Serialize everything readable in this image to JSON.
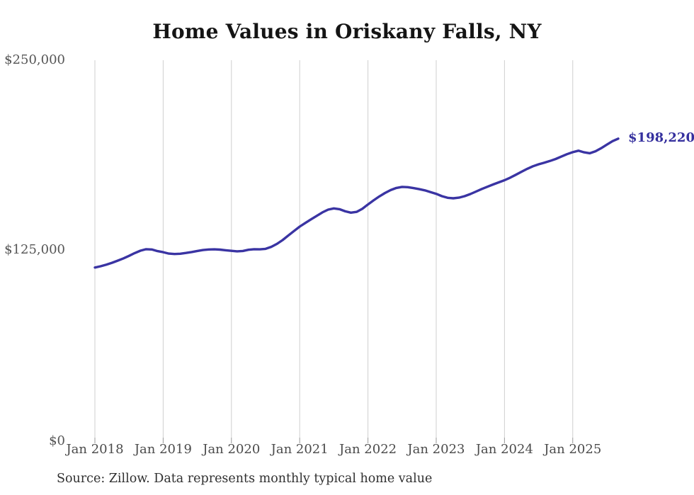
{
  "title": "Home Values in Oriskany Falls, NY",
  "source_note": "Source: Zillow. Data represents monthly typical home value",
  "colors": {
    "line": "#3a34a3",
    "end_label": "#35309e",
    "grid": "#cfcfcf",
    "tick": "#999999",
    "title_text": "#141414",
    "axis_text": "#565656",
    "background": "#ffffff"
  },
  "chart_data": {
    "type": "line",
    "title": "Home Values in Oriskany Falls, NY",
    "xlabel": "",
    "ylabel": "",
    "ylim": [
      0,
      250000
    ],
    "grid": "vertical",
    "legend_position": "none",
    "end_label": "$198,220",
    "last_value": 198220,
    "y_axis": {
      "ticks": [
        {
          "label": "$0",
          "value": 0
        },
        {
          "label": "$125,000",
          "value": 125000
        },
        {
          "label": "$250,000",
          "value": 250000
        }
      ]
    },
    "x_axis": {
      "ticks": [
        {
          "label": "Jan 2018",
          "month_index": 0
        },
        {
          "label": "Jan 2019",
          "month_index": 12
        },
        {
          "label": "Jan 2020",
          "month_index": 24
        },
        {
          "label": "Jan 2021",
          "month_index": 36
        },
        {
          "label": "Jan 2022",
          "month_index": 48
        },
        {
          "label": "Jan 2023",
          "month_index": 60
        },
        {
          "label": "Jan 2024",
          "month_index": 72
        },
        {
          "label": "Jan 2025",
          "month_index": 84
        }
      ]
    },
    "series": [
      {
        "name": "Monthly typical home value",
        "frequency": "monthly",
        "start": "Jan 2018",
        "end": "Sep 2025",
        "values": [
          113200,
          114000,
          115100,
          116300,
          117700,
          119200,
          120900,
          122700,
          124300,
          125300,
          125100,
          124000,
          123300,
          122400,
          122100,
          122300,
          122800,
          123400,
          124100,
          124700,
          125100,
          125200,
          125000,
          124600,
          124200,
          123900,
          124100,
          124900,
          125300,
          125200,
          125500,
          126800,
          128800,
          131300,
          134300,
          137300,
          140200,
          142600,
          145000,
          147300,
          149600,
          151400,
          152200,
          151700,
          150300,
          149400,
          149900,
          151900,
          154800,
          157500,
          160100,
          162400,
          164300,
          165700,
          166400,
          166200,
          165600,
          164900,
          164100,
          163000,
          161800,
          160300,
          159200,
          158900,
          159300,
          160300,
          161700,
          163300,
          165000,
          166500,
          168000,
          169400,
          170800,
          172500,
          174400,
          176400,
          178300,
          180000,
          181300,
          182400,
          183500,
          184800,
          186400,
          188000,
          189300,
          190300,
          189200,
          188600,
          189900,
          191900,
          194300,
          196600,
          198220
        ]
      }
    ]
  }
}
